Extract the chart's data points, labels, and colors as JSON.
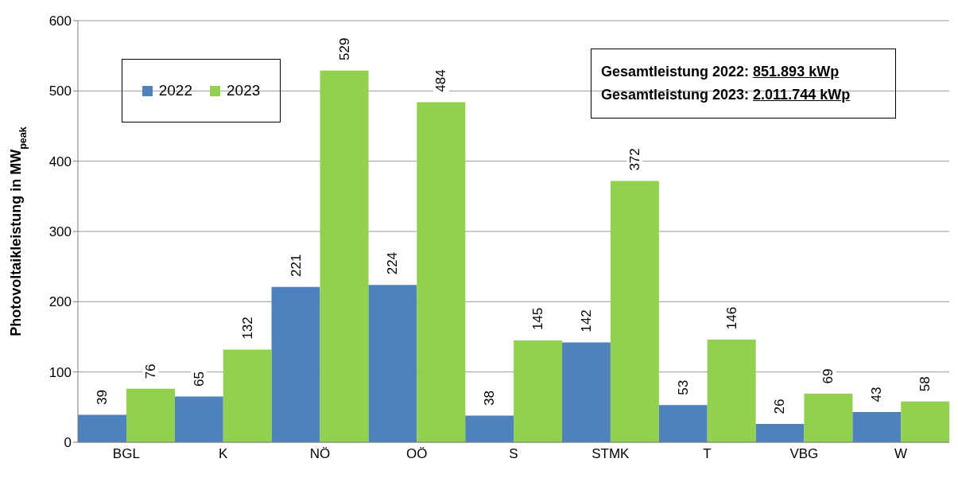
{
  "chart_data": {
    "type": "bar",
    "ylabel": "Photovoltaikleistung in MW$_{peak}$",
    "categories": [
      "BGL",
      "K",
      "NÖ",
      "OÖ",
      "S",
      "STMK",
      "T",
      "VBG",
      "W"
    ],
    "series": [
      {
        "name": "2022",
        "color": "#4f81bd",
        "values": [
          39,
          65,
          221,
          224,
          38,
          142,
          53,
          26,
          43
        ]
      },
      {
        "name": "2023",
        "color": "#92d050",
        "values": [
          76,
          132,
          529,
          484,
          145,
          372,
          146,
          69,
          58
        ]
      }
    ],
    "ylim": [
      0,
      600
    ],
    "yticks": [
      0,
      100,
      200,
      300,
      400,
      500,
      600
    ],
    "grid": "y",
    "legend": "top left",
    "data_labels": true,
    "annotations": [
      "Gesamtleistung 2022: 851.893 kWp",
      "Gesamtleistung 2023: 2.011.744 kWp"
    ]
  }
}
